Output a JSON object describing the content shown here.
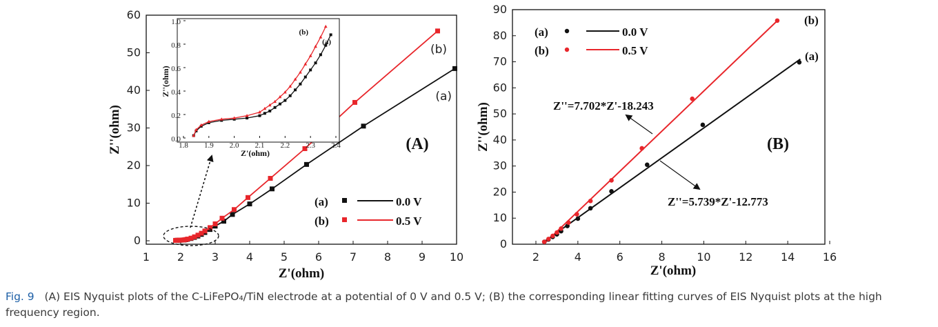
{
  "caption": {
    "label": "Fig. 9",
    "text": "(A) EIS Nyquist plots of the C-LiFePO₄/TiN electrode at a potential of 0 V and 0.5 V; (B) the corresponding linear fitting curves of EIS Nyquist plots at the high frequency region."
  },
  "chart_data": [
    {
      "panel": "(A)",
      "type": "line",
      "xlabel": "Z'(ohm)",
      "ylabel": "Z''(ohm)",
      "xlim": [
        1,
        10
      ],
      "ylim": [
        0,
        60
      ],
      "xticks": [
        "1",
        "2",
        "3",
        "4",
        "5",
        "6",
        "7",
        "8",
        "9",
        "10"
      ],
      "yticks": [
        "0",
        "10",
        "20",
        "30",
        "40",
        "50",
        "60"
      ],
      "curve_labels": [
        "(a)",
        "(b)"
      ],
      "legend": [
        {
          "tag": "(a)",
          "label": "0.0 V",
          "color": "#111111"
        },
        {
          "tag": "(b)",
          "label": "0.5 V",
          "color": "#e8262b"
        }
      ],
      "series": [
        {
          "tag": "(a)",
          "color": "#111111",
          "x": [
            1.86,
            1.9,
            1.95,
            2.0,
            2.05,
            2.1,
            2.15,
            2.2,
            2.3,
            2.4,
            2.5,
            2.6,
            2.7,
            2.85,
            3.0,
            3.25,
            3.5,
            4.0,
            4.65,
            5.65,
            7.3,
            9.95
          ],
          "y": [
            0.1,
            0.12,
            0.14,
            0.16,
            0.18,
            0.2,
            0.28,
            0.38,
            0.6,
            0.9,
            1.25,
            1.7,
            2.2,
            3.0,
            3.9,
            5.2,
            7.0,
            9.8,
            13.8,
            20.3,
            30.5,
            45.8
          ]
        },
        {
          "tag": "(b)",
          "color": "#e8262b",
          "x": [
            1.85,
            1.9,
            1.95,
            2.0,
            2.05,
            2.1,
            2.15,
            2.2,
            2.3,
            2.4,
            2.5,
            2.6,
            2.7,
            2.85,
            3.0,
            3.2,
            3.55,
            3.95,
            4.6,
            5.6,
            7.05,
            9.45
          ],
          "y": [
            0.1,
            0.13,
            0.15,
            0.17,
            0.2,
            0.24,
            0.32,
            0.45,
            0.7,
            1.05,
            1.5,
            2.0,
            2.6,
            3.5,
            4.5,
            6.0,
            8.3,
            11.5,
            16.6,
            24.5,
            36.8,
            55.8
          ]
        }
      ],
      "inset": {
        "xlabel": "Z'(ohm)",
        "ylabel": "Z''(ohm)",
        "xlim": [
          1.8,
          2.4
        ],
        "ylim": [
          0.0,
          1.0
        ],
        "xticks": [
          "1.8",
          "1.9",
          "2.0",
          "2.1",
          "2.2",
          "2.3",
          "2.4"
        ],
        "yticks": [
          "0.0",
          "0.2",
          "0.4",
          "0.6",
          "0.8",
          "1.0"
        ],
        "curve_labels": [
          "(a)",
          "(b)"
        ],
        "series": [
          {
            "tag": "(a)",
            "color": "#111111",
            "x": [
              1.84,
              1.85,
              1.87,
              1.9,
              1.95,
              2.0,
              2.05,
              2.1,
              2.12,
              2.14,
              2.16,
              2.18,
              2.2,
              2.22,
              2.24,
              2.26,
              2.28,
              2.3,
              2.32,
              2.34,
              2.36,
              2.38
            ],
            "y": [
              0.02,
              0.06,
              0.1,
              0.13,
              0.15,
              0.16,
              0.17,
              0.19,
              0.21,
              0.23,
              0.26,
              0.29,
              0.32,
              0.36,
              0.41,
              0.46,
              0.52,
              0.58,
              0.64,
              0.71,
              0.79,
              0.88
            ]
          },
          {
            "tag": "(b)",
            "color": "#e8262b",
            "x": [
              1.84,
              1.85,
              1.87,
              1.9,
              1.95,
              2.0,
              2.05,
              2.1,
              2.12,
              2.14,
              2.16,
              2.18,
              2.2,
              2.22,
              2.24,
              2.26,
              2.28,
              2.3,
              2.32,
              2.34,
              2.36
            ],
            "y": [
              0.02,
              0.07,
              0.11,
              0.14,
              0.16,
              0.17,
              0.19,
              0.22,
              0.25,
              0.28,
              0.31,
              0.35,
              0.39,
              0.44,
              0.5,
              0.56,
              0.63,
              0.7,
              0.78,
              0.86,
              0.95
            ]
          }
        ]
      }
    },
    {
      "panel": "(B)",
      "type": "line",
      "xlabel": "Z'(ohm)",
      "ylabel": "Z''(ohm)",
      "xlim": [
        1.4,
        16
      ],
      "ylim": [
        0,
        90
      ],
      "xticks": [
        "2",
        "4",
        "6",
        "8",
        "10",
        "12",
        "14",
        "16"
      ],
      "yticks": [
        "0",
        "10",
        "20",
        "30",
        "40",
        "50",
        "60",
        "70",
        "80",
        "90"
      ],
      "curve_labels": [
        "(a)",
        "(b)"
      ],
      "legend": [
        {
          "tag": "(a)",
          "label": "0.0 V",
          "color": "#111111"
        },
        {
          "tag": "(b)",
          "label": "0.5 V",
          "color": "#e8262b"
        }
      ],
      "equations": [
        "Z''=7.702*Z'-18.243",
        "Z''=5.739*Z'-12.773"
      ],
      "fits": [
        {
          "tag": "(a)",
          "color": "#111111",
          "slope": 5.739,
          "intercept": -12.773,
          "xrange": [
            2.4,
            14.6
          ]
        },
        {
          "tag": "(b)",
          "color": "#e8262b",
          "slope": 7.702,
          "intercept": -18.243,
          "xrange": [
            2.4,
            13.5
          ]
        }
      ],
      "series": [
        {
          "tag": "(a)",
          "color": "#111111",
          "x": [
            2.4,
            2.6,
            2.8,
            3.0,
            3.2,
            3.5,
            4.0,
            4.6,
            5.6,
            7.3,
            9.95,
            14.55
          ],
          "y": [
            0.9,
            1.8,
            2.8,
            3.8,
            5.0,
            7.0,
            9.8,
            13.8,
            20.3,
            30.5,
            45.8,
            69.8
          ]
        },
        {
          "tag": "(b)",
          "color": "#e8262b",
          "x": [
            2.4,
            2.6,
            2.8,
            3.0,
            3.2,
            3.55,
            3.95,
            4.6,
            5.6,
            7.05,
            9.45,
            13.5
          ],
          "y": [
            0.9,
            2.0,
            3.2,
            4.5,
            6.0,
            8.3,
            11.5,
            16.6,
            24.5,
            36.8,
            55.8,
            85.8
          ]
        }
      ]
    }
  ]
}
